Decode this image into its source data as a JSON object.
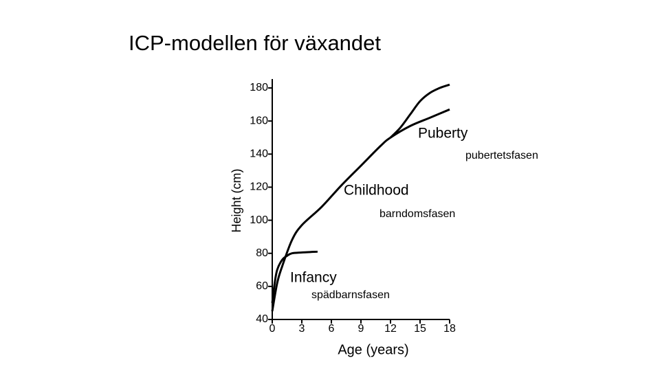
{
  "chart_data": {
    "type": "line",
    "title": "ICP-modellen för växandet",
    "x_label": "Age (years)",
    "y_label": "Height (cm)",
    "xlim": [
      0,
      18
    ],
    "xticks": [
      0,
      3,
      6,
      9,
      12,
      15,
      18
    ],
    "ylim": [
      40,
      185
    ],
    "yticks": [
      40,
      60,
      80,
      100,
      120,
      140,
      160,
      180
    ],
    "series": [
      {
        "color": "#000000",
        "x": [
          0,
          0.25,
          0.5,
          1,
          1.5,
          2,
          3,
          4.6
        ],
        "values": [
          50,
          62,
          70,
          76,
          78.5,
          80,
          80.5,
          81
        ]
      },
      {
        "color": "#000000",
        "x": [
          0,
          0.5,
          1,
          2,
          3,
          5,
          7,
          9,
          11,
          12,
          14,
          16,
          18
        ],
        "values": [
          45,
          62,
          72,
          88,
          97,
          108,
          121,
          133,
          145,
          150,
          157,
          162,
          167
        ]
      },
      {
        "color": "#000000",
        "x": [
          12,
          13,
          14,
          15,
          16,
          17,
          18
        ],
        "values": [
          150,
          156,
          164,
          172,
          177,
          180,
          182
        ]
      }
    ],
    "annotations": [
      "Puberty",
      "pubertetsfasen",
      "Childhood",
      "barndomsfasen",
      "Infancy",
      "spädbarnsfasen"
    ]
  }
}
